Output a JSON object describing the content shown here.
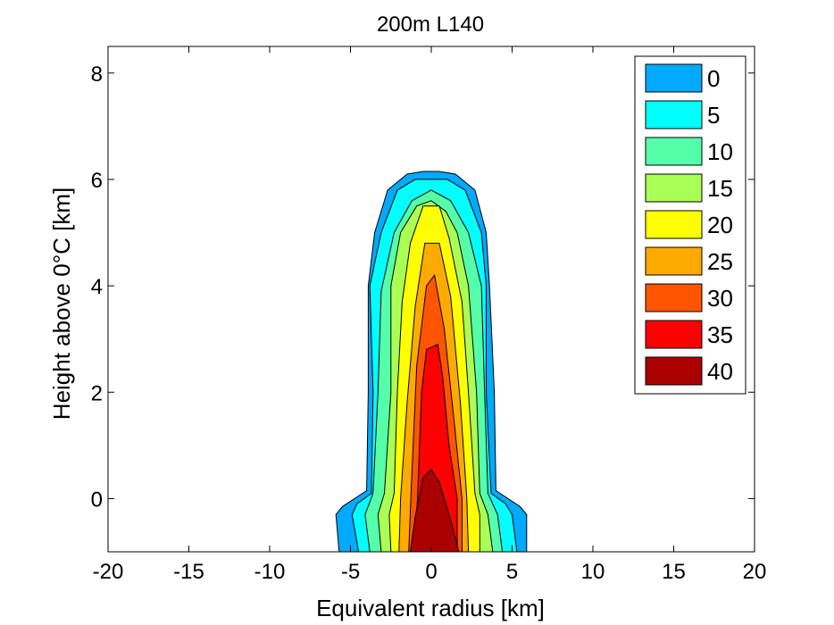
{
  "chart_data": {
    "type": "contour",
    "title": "200m L140",
    "xlabel": "Equivalent radius [km]",
    "ylabel": "Height above 0°C [km]",
    "xlim": [
      -20,
      20
    ],
    "ylim": [
      -1,
      8.5
    ],
    "xticks": [
      "-20",
      "-15",
      "-10",
      "-5",
      "0",
      "5",
      "10",
      "15",
      "20"
    ],
    "xtick_values": [
      -20,
      -15,
      -10,
      -5,
      0,
      5,
      10,
      15,
      20
    ],
    "yticks": [
      "0",
      "2",
      "4",
      "6",
      "8"
    ],
    "ytick_values": [
      0,
      2,
      4,
      6,
      8
    ],
    "grid": false,
    "legend_position": "top-right",
    "levels": [
      {
        "label": "0",
        "value": 0,
        "color": "#00aaff"
      },
      {
        "label": "5",
        "value": 5,
        "color": "#00ffff"
      },
      {
        "label": "10",
        "value": 10,
        "color": "#55ffaa"
      },
      {
        "label": "15",
        "value": 15,
        "color": "#aaff55"
      },
      {
        "label": "20",
        "value": 20,
        "color": "#ffff00"
      },
      {
        "label": "25",
        "value": 25,
        "color": "#ffaa00"
      },
      {
        "label": "30",
        "value": 30,
        "color": "#ff5500"
      },
      {
        "label": "35",
        "value": 35,
        "color": "#ff0000"
      },
      {
        "label": "40",
        "value": 40,
        "color": "#aa0000"
      }
    ],
    "contour_polygons": [
      {
        "level": "0",
        "points": [
          [
            -5.7,
            -1
          ],
          [
            -5.9,
            -0.3
          ],
          [
            -5.5,
            -0.15
          ],
          [
            -4,
            0.15
          ],
          [
            -3.9,
            2
          ],
          [
            -3.9,
            4
          ],
          [
            -3.5,
            5
          ],
          [
            -2.7,
            5.8
          ],
          [
            -1.5,
            6.1
          ],
          [
            -0.5,
            6.15
          ],
          [
            0.5,
            6.15
          ],
          [
            1.5,
            6.1
          ],
          [
            2.7,
            5.8
          ],
          [
            3.4,
            5
          ],
          [
            3.6,
            4
          ],
          [
            3.9,
            2
          ],
          [
            4,
            0.15
          ],
          [
            5.5,
            -0.15
          ],
          [
            5.9,
            -0.3
          ],
          [
            5.9,
            -1
          ]
        ]
      },
      {
        "level": "5",
        "points": [
          [
            -4.5,
            -1
          ],
          [
            -4.9,
            -0.3
          ],
          [
            -4.6,
            -0.1
          ],
          [
            -3.7,
            0.1
          ],
          [
            -3.6,
            2
          ],
          [
            -3.8,
            4
          ],
          [
            -3.1,
            5
          ],
          [
            -2.1,
            5.8
          ],
          [
            -1,
            6
          ],
          [
            1,
            6
          ],
          [
            2.1,
            5.8
          ],
          [
            3.1,
            5
          ],
          [
            3.4,
            4
          ],
          [
            3.4,
            2
          ],
          [
            3.7,
            0.1
          ],
          [
            4.6,
            -0.1
          ],
          [
            5,
            -0.3
          ],
          [
            5.3,
            -1
          ]
        ]
      },
      {
        "level": "10",
        "points": [
          [
            -3.8,
            -1
          ],
          [
            -4.1,
            -0.3
          ],
          [
            -3.6,
            0.1
          ],
          [
            -3.3,
            2
          ],
          [
            -3.1,
            3.9
          ],
          [
            -2.3,
            5
          ],
          [
            -1.2,
            5.6
          ],
          [
            0,
            5.8
          ],
          [
            1.2,
            5.6
          ],
          [
            2.3,
            5
          ],
          [
            3.1,
            4
          ],
          [
            3.3,
            2
          ],
          [
            3.5,
            0.1
          ],
          [
            4.1,
            -0.3
          ],
          [
            4.4,
            -1
          ]
        ]
      },
      {
        "level": "15",
        "points": [
          [
            -3.1,
            -1
          ],
          [
            -3.3,
            -0.3
          ],
          [
            -2.9,
            0.1
          ],
          [
            -2.5,
            2
          ],
          [
            -2.5,
            4
          ],
          [
            -1.9,
            5
          ],
          [
            -0.9,
            5.5
          ],
          [
            0,
            5.6
          ],
          [
            0.9,
            5.4
          ],
          [
            1.6,
            5
          ],
          [
            2.3,
            4
          ],
          [
            2.8,
            2
          ],
          [
            3,
            0.1
          ],
          [
            3.5,
            -0.3
          ],
          [
            3.8,
            -1
          ]
        ]
      },
      {
        "level": "20",
        "points": [
          [
            -2.5,
            -1
          ],
          [
            -2.6,
            -0.3
          ],
          [
            -2.3,
            0.1
          ],
          [
            -2.1,
            2
          ],
          [
            -1.8,
            3.7
          ],
          [
            -1.3,
            4.8
          ],
          [
            -0.5,
            5.5
          ],
          [
            0.5,
            5.5
          ],
          [
            1.1,
            4.9
          ],
          [
            1.9,
            3.7
          ],
          [
            2.3,
            2
          ],
          [
            2.7,
            0.1
          ],
          [
            3,
            -0.3
          ],
          [
            3,
            -1
          ]
        ]
      },
      {
        "level": "25",
        "points": [
          [
            -2,
            -1
          ],
          [
            -1.9,
            0
          ],
          [
            -1.5,
            1.8
          ],
          [
            -1,
            3.6
          ],
          [
            -0.4,
            4.8
          ],
          [
            0.5,
            4.8
          ],
          [
            1.2,
            3.8
          ],
          [
            1.8,
            1.8
          ],
          [
            2.2,
            0
          ],
          [
            2.3,
            -1
          ]
        ]
      },
      {
        "level": "30",
        "points": [
          [
            -1.4,
            -1
          ],
          [
            -1.2,
            0.5
          ],
          [
            -0.9,
            2.5
          ],
          [
            -0.3,
            4
          ],
          [
            0.2,
            4.2
          ],
          [
            0.8,
            3.2
          ],
          [
            1.4,
            1.5
          ],
          [
            1.9,
            0
          ],
          [
            1.9,
            -1
          ]
        ]
      },
      {
        "level": "35",
        "points": [
          [
            -1,
            -1
          ],
          [
            -0.8,
            0.4
          ],
          [
            -0.6,
            2
          ],
          [
            -0.3,
            2.8
          ],
          [
            0.4,
            2.9
          ],
          [
            0.7,
            2.3
          ],
          [
            1.1,
            1
          ],
          [
            1.6,
            0
          ],
          [
            1.6,
            -1
          ]
        ]
      },
      {
        "level": "40",
        "points": [
          [
            -1.3,
            -1
          ],
          [
            -1,
            -0.35
          ],
          [
            -0.5,
            0.4
          ],
          [
            0,
            0.55
          ],
          [
            0.5,
            0.3
          ],
          [
            1.2,
            -0.4
          ],
          [
            1.7,
            -1
          ]
        ]
      }
    ]
  }
}
